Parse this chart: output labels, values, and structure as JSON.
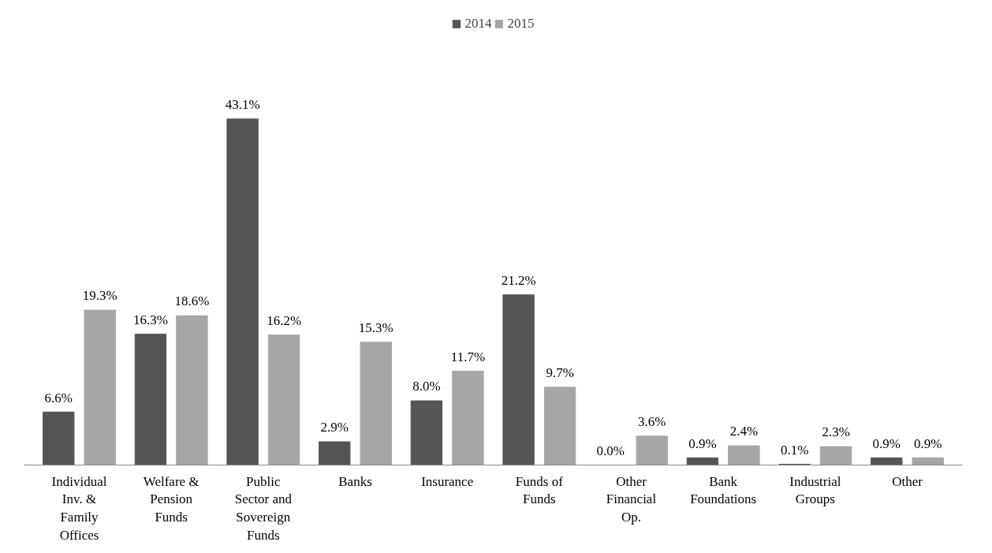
{
  "chart_data": {
    "type": "bar",
    "categories": [
      "Individual Inv. & Family Offices",
      "Welfare & Pension Funds",
      "Public Sector and Sovereign Funds",
      "Banks",
      "Insurance",
      "Funds of Funds",
      "Other Financial Op.",
      "Bank Foundations",
      "Industrial Groups",
      "Other"
    ],
    "series": [
      {
        "name": "2014",
        "color": "#555555",
        "values": [
          6.6,
          16.3,
          43.1,
          2.9,
          8.0,
          21.2,
          0.0,
          0.9,
          0.1,
          0.9
        ],
        "value_labels": [
          "6.6%",
          "16.3%",
          "43.1%",
          "2.9%",
          "8.0%",
          "21.2%",
          "0.0%",
          "0.9%",
          "0.1%",
          "0.9%"
        ]
      },
      {
        "name": "2015",
        "color": "#a6a6a6",
        "values": [
          19.3,
          18.6,
          16.2,
          15.3,
          11.7,
          9.7,
          3.6,
          2.4,
          2.3,
          0.9
        ],
        "value_labels": [
          "19.3%",
          "18.6%",
          "16.2%",
          "15.3%",
          "11.7%",
          "9.7%",
          "3.6%",
          "2.4%",
          "2.3%",
          "0.9%"
        ]
      }
    ],
    "legend": "top",
    "grid": false
  }
}
